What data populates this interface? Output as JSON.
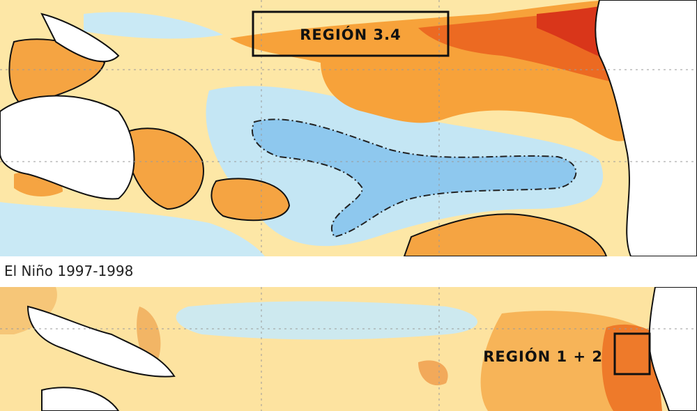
{
  "top_map": {
    "region_label": "REGIÓN 3.4"
  },
  "caption": "El Niño 1997-1998",
  "bottom_map": {
    "region_label": "REGIÓN 1 + 2"
  }
}
